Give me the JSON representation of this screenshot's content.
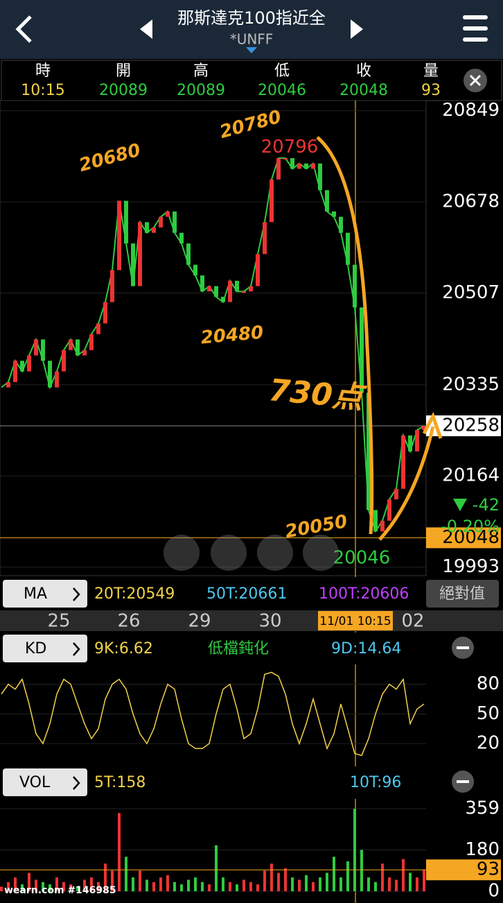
{
  "header": {
    "title": "那斯達克100指近全",
    "symbol": "*UNFF"
  },
  "quote": {
    "labels": [
      "時",
      "開",
      "高",
      "低",
      "收",
      "量"
    ],
    "values": [
      "10:15",
      "20089",
      "20089",
      "20046",
      "20048",
      "93"
    ]
  },
  "main_chart": {
    "ylim": [
      19977,
      20868
    ],
    "yticks": [
      19993,
      20164,
      20335,
      20507,
      20678,
      20849
    ],
    "high": 20796,
    "low": 20046,
    "last": 20258,
    "close": 20048,
    "change": "-42",
    "change_pct": "-0.20%",
    "price": [
      20330,
      20340,
      20380,
      20360,
      20390,
      20420,
      20380,
      20330,
      20360,
      20400,
      20420,
      20390,
      20400,
      20430,
      20450,
      20490,
      20550,
      20680,
      20600,
      20520,
      20640,
      20620,
      20630,
      20650,
      20660,
      20620,
      20600,
      20560,
      20540,
      20510,
      20520,
      20500,
      20490,
      20530,
      20510,
      20510,
      20520,
      20580,
      20640,
      20720,
      20760,
      20760,
      20740,
      20750,
      20740,
      20750,
      20700,
      20660,
      20650,
      20620,
      20560,
      20480,
      20320,
      20100,
      20060,
      20080,
      20120,
      20140,
      20240,
      20210,
      20250,
      20258
    ]
  },
  "annotations": [
    "20680",
    "20780",
    "20480",
    "730点",
    "20050"
  ],
  "ma_bar": {
    "button": "MA",
    "items": [
      "20T:20549",
      "50T:20661",
      "100T:20606"
    ],
    "mode": "絕對值"
  },
  "dates": [
    "25",
    "26",
    "29",
    "30",
    "11/01 10:15",
    "02"
  ],
  "kd_bar": {
    "button": "KD",
    "k": "9K:6.62",
    "status": "低檔鈍化",
    "d": "9D:14.64"
  },
  "kd_chart": {
    "ylim": [
      -3,
      100
    ],
    "yticks": [
      20,
      50,
      80
    ],
    "k": [
      70,
      80,
      75,
      85,
      60,
      30,
      20,
      40,
      70,
      85,
      80,
      60,
      40,
      25,
      35,
      65,
      80,
      85,
      75,
      50,
      30,
      20,
      35,
      60,
      80,
      75,
      45,
      20,
      15,
      15,
      20,
      50,
      75,
      80,
      55,
      25,
      30,
      55,
      90,
      92,
      88,
      70,
      40,
      20,
      40,
      65,
      40,
      15,
      30,
      60,
      35,
      10,
      8,
      25,
      50,
      70,
      80,
      75,
      85,
      40,
      55,
      60
    ]
  },
  "vol_bar": {
    "button": "VOL",
    "ma5": "5T:158",
    "ma10": "10T:96"
  },
  "vol_chart": {
    "ylim": [
      -51,
      401
    ],
    "yticks": [
      0,
      180,
      359
    ],
    "last": 93,
    "values": [
      20,
      40,
      60,
      30,
      80,
      50,
      40,
      30,
      60,
      40,
      30,
      20,
      50,
      60,
      40,
      120,
      90,
      340,
      150,
      60,
      90,
      50,
      40,
      60,
      70,
      40,
      30,
      50,
      60,
      40,
      30,
      200,
      60,
      40,
      30,
      50,
      40,
      30,
      90,
      120,
      80,
      100,
      60,
      50,
      70,
      40,
      60,
      80,
      150,
      60,
      130,
      359,
      180,
      60,
      40,
      120,
      60,
      50,
      140,
      80,
      60,
      93
    ]
  },
  "watermark": "wearn.com #146985"
}
